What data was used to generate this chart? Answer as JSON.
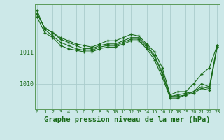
{
  "bg_color": "#cce8e8",
  "grid_color": "#aacccc",
  "line_color": "#1a6b1a",
  "marker_color": "#1a6b1a",
  "title": "Graphe pression niveau de la mer (hPa)",
  "title_fontsize": 7.5,
  "xlabel_ticks": [
    0,
    1,
    2,
    3,
    4,
    5,
    6,
    7,
    8,
    9,
    10,
    11,
    12,
    13,
    14,
    15,
    16,
    17,
    18,
    19,
    20,
    21,
    22,
    23
  ],
  "yticks": [
    1010,
    1011
  ],
  "ylim": [
    1009.2,
    1012.5
  ],
  "xlim": [
    -0.3,
    23.3
  ],
  "series": [
    [
      1012.2,
      1011.75,
      1011.6,
      1011.45,
      1011.35,
      1011.25,
      1011.2,
      1011.15,
      1011.25,
      1011.35,
      1011.35,
      1011.45,
      1011.55,
      1011.5,
      1011.25,
      1011.0,
      1010.5,
      1009.65,
      1009.75,
      1009.75,
      1010.0,
      1010.3,
      1010.5,
      1011.2
    ],
    [
      1012.2,
      1011.75,
      1011.6,
      1011.4,
      1011.3,
      1011.2,
      1011.1,
      1011.1,
      1011.2,
      1011.25,
      1011.25,
      1011.35,
      1011.45,
      1011.45,
      1011.2,
      1010.9,
      1010.35,
      1009.6,
      1009.65,
      1009.7,
      1009.75,
      1010.0,
      1009.9,
      1011.2
    ],
    [
      1012.1,
      1011.6,
      1011.45,
      1011.2,
      1011.1,
      1011.05,
      1011.0,
      1011.0,
      1011.1,
      1011.15,
      1011.15,
      1011.25,
      1011.35,
      1011.35,
      1011.1,
      1010.75,
      1010.2,
      1009.55,
      1009.55,
      1009.65,
      1009.7,
      1009.85,
      1009.8,
      1011.15
    ],
    [
      1012.3,
      1011.7,
      1011.5,
      1011.3,
      1011.2,
      1011.1,
      1011.05,
      1011.05,
      1011.15,
      1011.2,
      1011.2,
      1011.3,
      1011.4,
      1011.4,
      1011.15,
      1010.85,
      1010.3,
      1009.6,
      1009.6,
      1009.65,
      1009.75,
      1009.9,
      1009.85,
      1011.15
    ]
  ]
}
